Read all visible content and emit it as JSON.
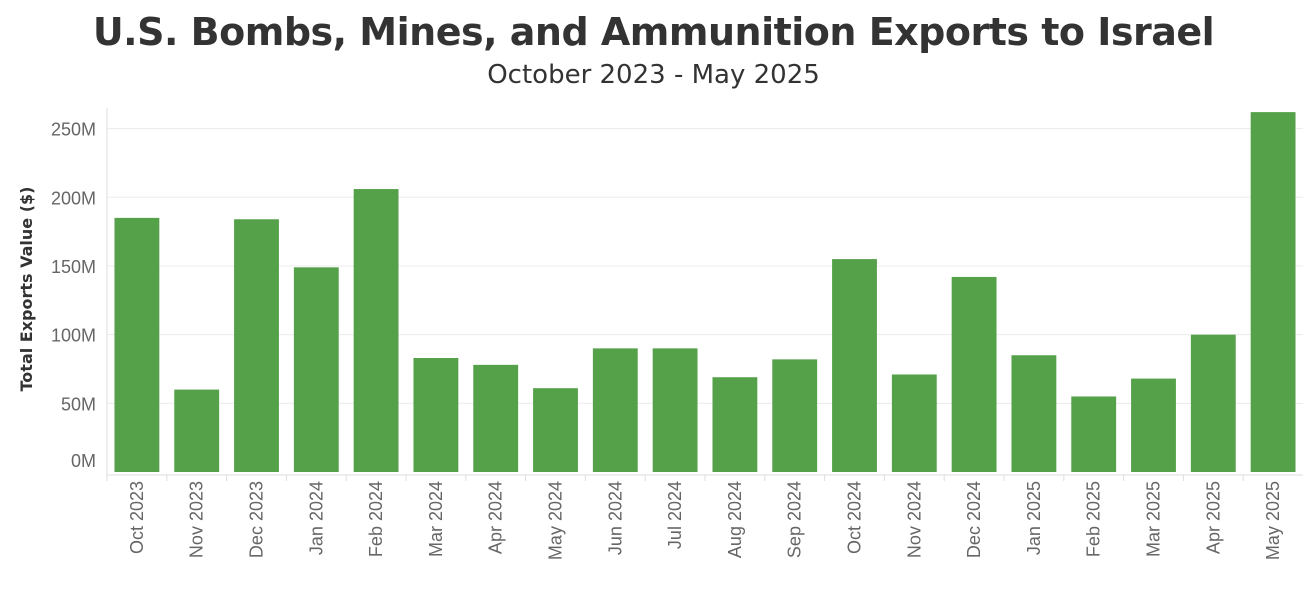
{
  "chart_data": {
    "type": "bar",
    "title": "U.S. Bombs, Mines, and Ammunition Exports to Israel",
    "subtitle": "October 2023 - May 2025",
    "xlabel": "",
    "ylabel": "Total Exports Value ($)",
    "ylim": [
      0,
      265000000
    ],
    "yticks": [
      0,
      50000000,
      100000000,
      150000000,
      200000000,
      250000000
    ],
    "ytick_labels": [
      "0M",
      "50M",
      "100M",
      "150M",
      "200M",
      "250M"
    ],
    "grid": true,
    "legend": "none",
    "bar_color": "#55a14a",
    "categories": [
      "Oct 2023",
      "Nov 2023",
      "Dec 2023",
      "Jan 2024",
      "Feb 2024",
      "Mar 2024",
      "Apr 2024",
      "May 2024",
      "Jun 2024",
      "Jul 2024",
      "Aug 2024",
      "Sep 2024",
      "Oct 2024",
      "Nov 2024",
      "Dec 2024",
      "Jan 2025",
      "Feb 2025",
      "Mar 2025",
      "Apr 2025",
      "May 2025"
    ],
    "values": [
      185000000,
      60000000,
      184000000,
      149000000,
      206000000,
      83000000,
      78000000,
      61000000,
      90000000,
      90000000,
      69000000,
      82000000,
      155000000,
      71000000,
      142000000,
      85000000,
      55000000,
      68000000,
      100000000,
      262000000
    ]
  }
}
